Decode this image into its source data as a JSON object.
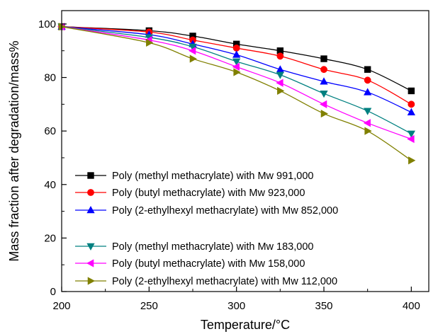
{
  "chart_data": {
    "type": "line",
    "xlabel": "Temperature/°C",
    "ylabel": "Mass fraction after degradation/mass%",
    "xlim": [
      200,
      410
    ],
    "ylim": [
      0,
      105
    ],
    "x_ticks": [
      "200",
      "250",
      "300",
      "350",
      "400"
    ],
    "y_ticks": [
      "0",
      "20",
      "40",
      "60",
      "80",
      "100"
    ],
    "grid": false,
    "legend_position": "bottom-left",
    "series": [
      {
        "name": "Poly (methyl methacrylate) with Mw 991,000",
        "color": "#000000",
        "marker": "square",
        "x": [
          200,
          250,
          275,
          300,
          325,
          350,
          375,
          400
        ],
        "y": [
          99,
          97.5,
          95.5,
          92.5,
          90,
          87,
          83,
          75
        ]
      },
      {
        "name": "Poly (butyl methacrylate) with Mw 923,000",
        "color": "#ff0000",
        "marker": "circle",
        "x": [
          200,
          250,
          275,
          300,
          325,
          350,
          375,
          400
        ],
        "y": [
          99,
          97,
          94,
          91,
          88,
          83,
          79,
          70
        ]
      },
      {
        "name": "Poly (2-ethylhexyl methacrylate) with Mw 852,000",
        "color": "#0000ff",
        "marker": "triangle-up",
        "x": [
          200,
          250,
          275,
          300,
          325,
          350,
          375,
          400
        ],
        "y": [
          99,
          96,
          92.5,
          88.5,
          83,
          78.5,
          74.5,
          67
        ]
      },
      {
        "name": "Poly (methyl methacrylate) with Mw 183,000",
        "color": "#008080",
        "marker": "triangle-down",
        "x": [
          200,
          250,
          275,
          300,
          325,
          350,
          375,
          400
        ],
        "y": [
          99,
          95,
          91.5,
          86,
          81,
          74,
          67.5,
          59
        ]
      },
      {
        "name": "Poly (butyl methacrylate) with Mw 158,000",
        "color": "#ff00ff",
        "marker": "triangle-left",
        "x": [
          200,
          250,
          275,
          300,
          325,
          350,
          375,
          400
        ],
        "y": [
          99,
          94,
          90,
          84,
          78,
          70,
          63,
          57
        ]
      },
      {
        "name": "Poly (2-ethylhexyl methacrylate) with Mw 112,000",
        "color": "#808000",
        "marker": "triangle-right",
        "x": [
          200,
          250,
          275,
          300,
          325,
          350,
          375,
          400
        ],
        "y": [
          99,
          93,
          87,
          82,
          75,
          66.5,
          60,
          49
        ]
      }
    ]
  }
}
